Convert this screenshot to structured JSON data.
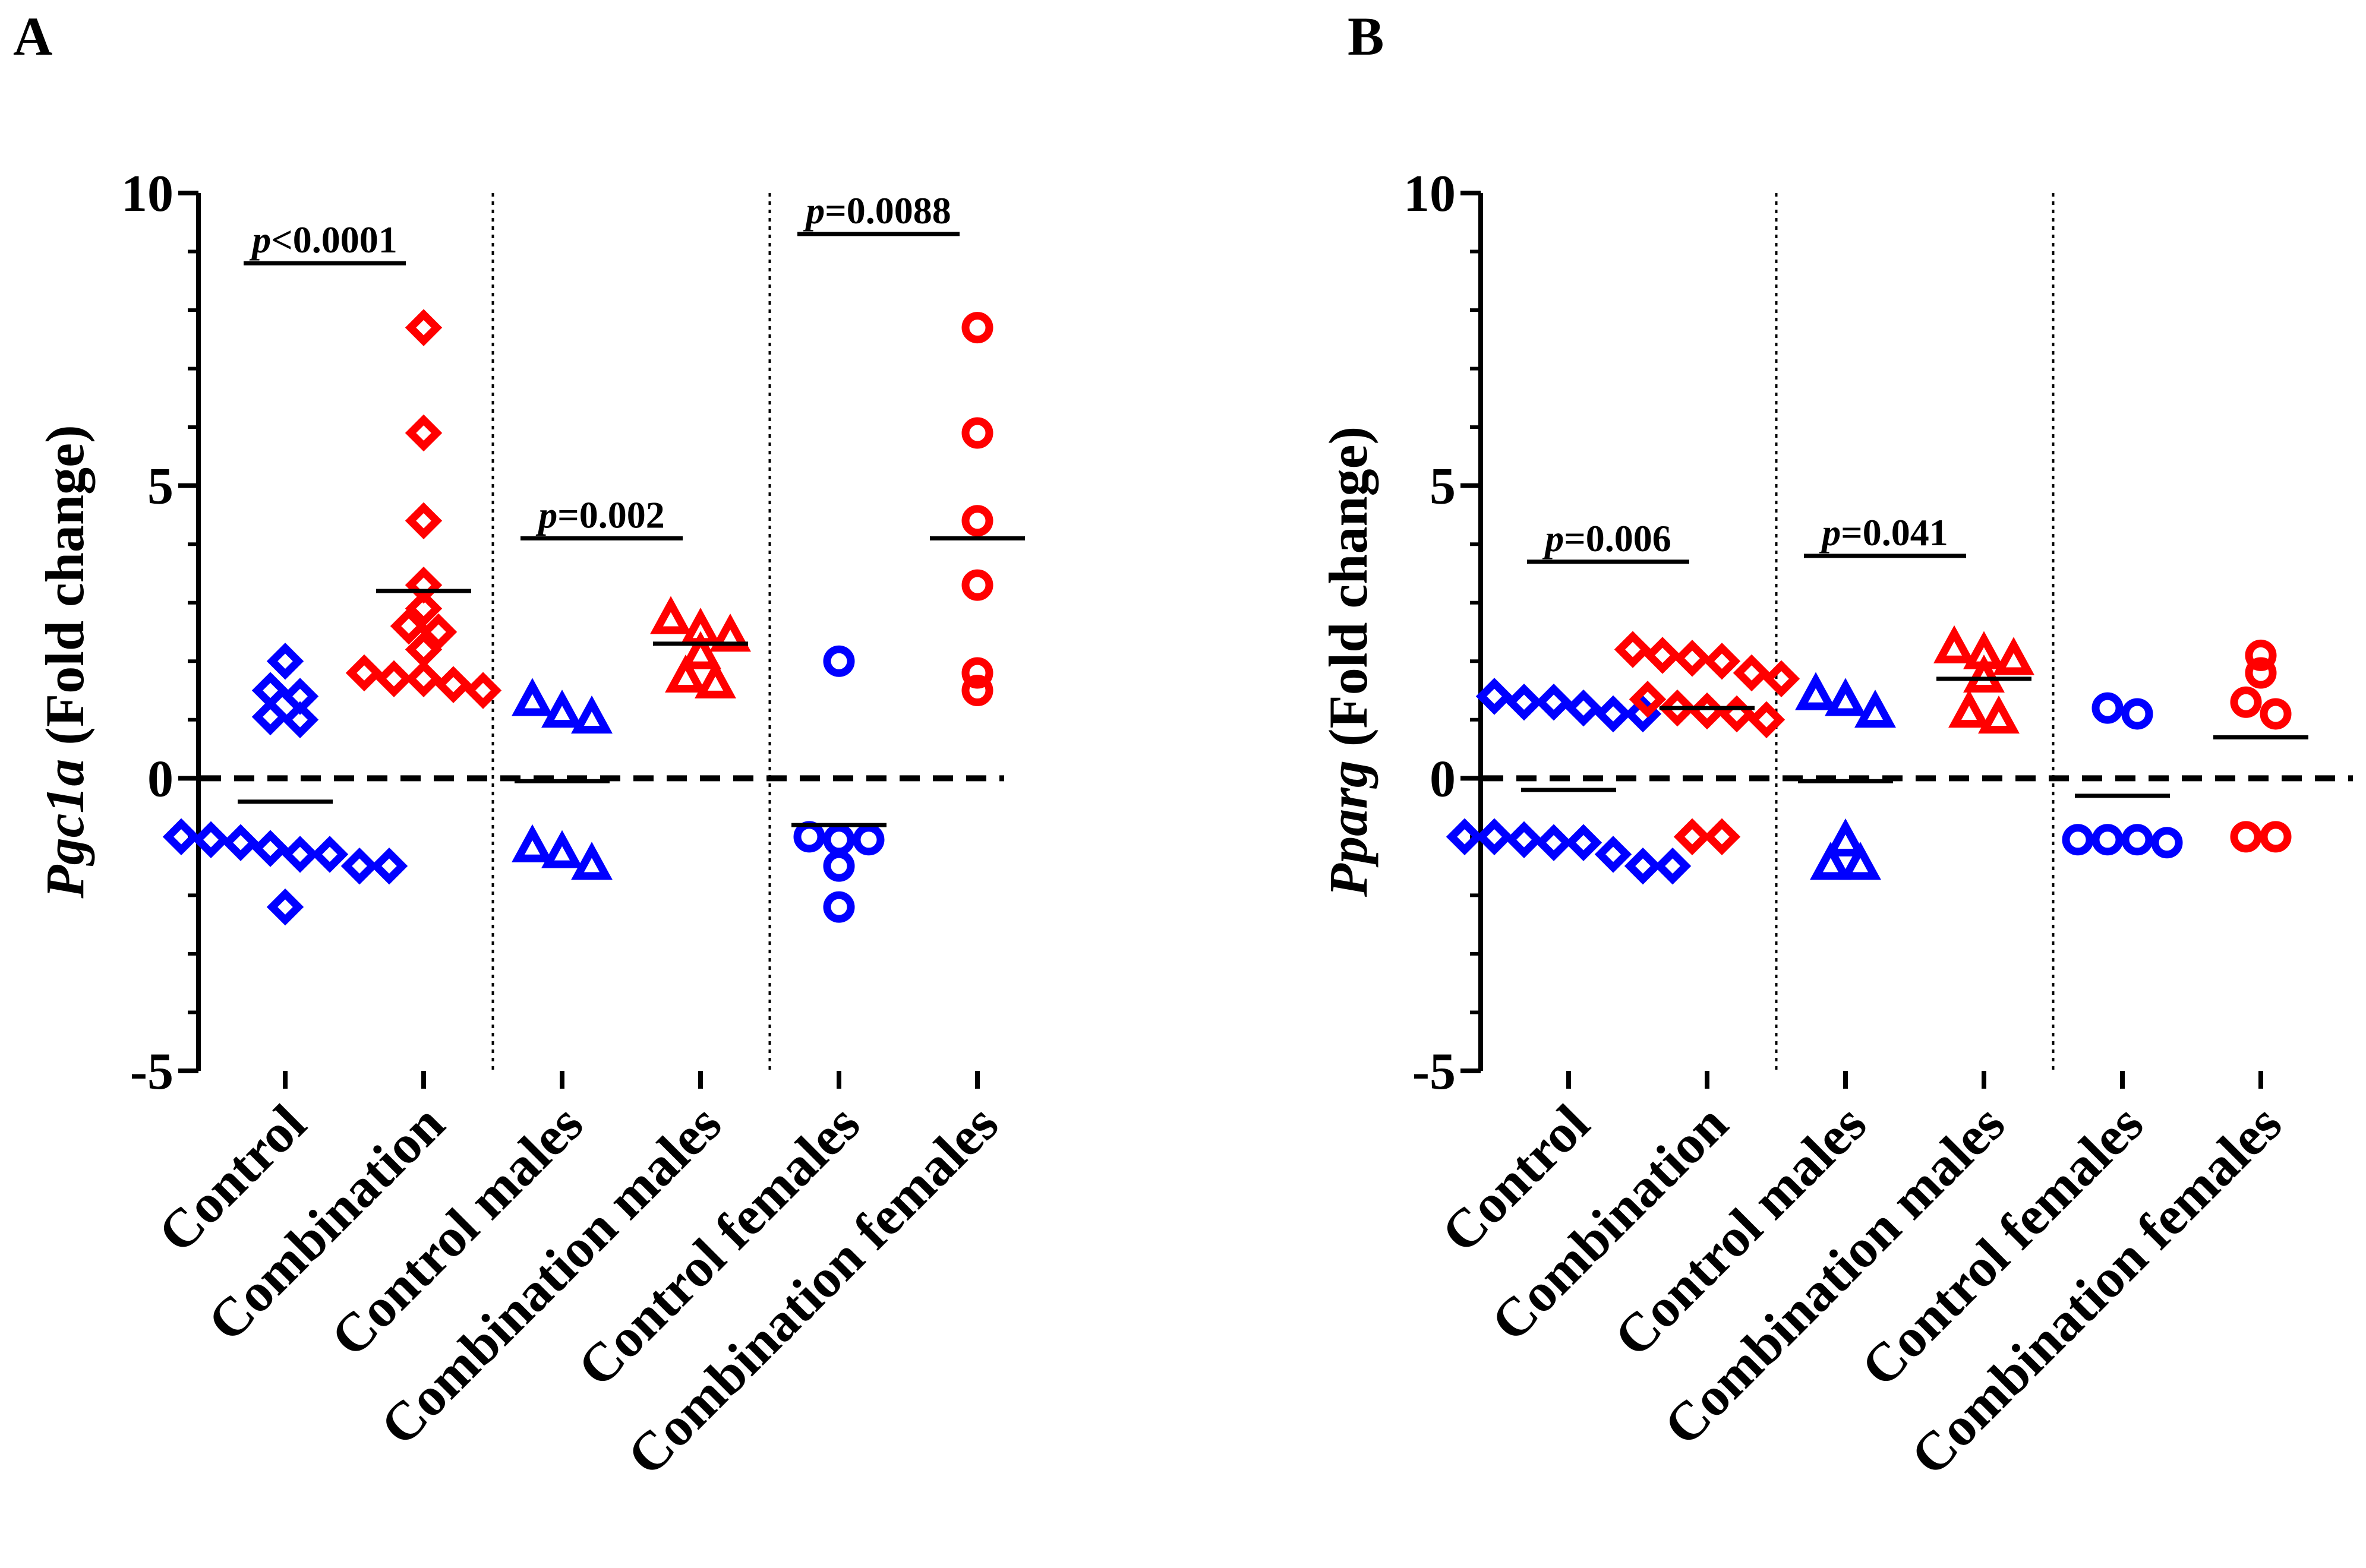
{
  "chart_data": [
    {
      "type": "scatter",
      "panel_label": "A",
      "title": "",
      "ylabel_gene": "Pgc1a",
      "ylabel_suffix": " (Fold change)",
      "ylim": [
        -5,
        10
      ],
      "yticks": [
        -5,
        0,
        5,
        10
      ],
      "reference_line": 0,
      "categories": [
        "Control",
        "Combination",
        "Control males",
        "Combination males",
        "Control females",
        "Combination females"
      ],
      "series": [
        {
          "name": "Control",
          "marker": "diamond",
          "color": "#0000ff",
          "values": [
            2.0,
            1.5,
            1.4,
            1.05,
            1.0,
            -1.0,
            -1.05,
            -1.1,
            -1.2,
            -1.3,
            -1.3,
            -1.5,
            -1.5,
            -2.2
          ],
          "mean": -0.4
        },
        {
          "name": "Combination",
          "marker": "diamond",
          "color": "#ff0000",
          "values": [
            7.7,
            5.9,
            4.4,
            3.3,
            2.9,
            2.6,
            2.5,
            2.2,
            1.8,
            1.7,
            1.7,
            1.6,
            1.5
          ],
          "mean": 3.2
        },
        {
          "name": "Control males",
          "marker": "triangle",
          "color": "#0000ff",
          "values": [
            1.3,
            1.1,
            1.0,
            -1.2,
            -1.3,
            -1.5
          ],
          "mean": -0.05
        },
        {
          "name": "Combination males",
          "marker": "triangle",
          "color": "#ff0000",
          "values": [
            2.7,
            2.5,
            2.4,
            2.1,
            1.7,
            1.6
          ],
          "mean": 2.3
        },
        {
          "name": "Control females",
          "marker": "circle",
          "color": "#0000ff",
          "values": [
            2.0,
            -1.0,
            -1.05,
            -1.05,
            -1.5,
            -2.2
          ],
          "mean": -0.8
        },
        {
          "name": "Combination females",
          "marker": "circle",
          "color": "#ff0000",
          "values": [
            7.7,
            5.9,
            4.4,
            3.3,
            1.8,
            1.5
          ],
          "mean": 4.1
        }
      ],
      "annotations": [
        {
          "label_prefix": "p",
          "label_value": "<0.0001",
          "from": 0,
          "to": 1,
          "y": 8.8
        },
        {
          "label_prefix": "p",
          "label_value": "=0.002",
          "from": 2,
          "to": 3,
          "y": 4.1
        },
        {
          "label_prefix": "p",
          "label_value": "=0.0088",
          "from": 4,
          "to": 5,
          "y": 9.3
        }
      ],
      "separators_after": [
        1,
        3
      ]
    },
    {
      "type": "scatter",
      "panel_label": "B",
      "title": "",
      "ylabel_gene": "Pparg",
      "ylabel_suffix": " (Fold change)",
      "ylim": [
        -5,
        10
      ],
      "yticks": [
        -5,
        0,
        5,
        10
      ],
      "reference_line": 0,
      "categories": [
        "Control",
        "Combination",
        "Control males",
        "Combination males",
        "Control females",
        "Combination females"
      ],
      "series": [
        {
          "name": "Control",
          "marker": "diamond",
          "color": "#0000ff",
          "values": [
            1.4,
            1.3,
            1.3,
            1.2,
            1.1,
            1.1,
            -1.0,
            -1.0,
            -1.05,
            -1.1,
            -1.1,
            -1.3,
            -1.5,
            -1.5
          ],
          "mean": -0.2
        },
        {
          "name": "Combination",
          "marker": "diamond",
          "color": "#ff0000",
          "values": [
            2.2,
            2.1,
            2.05,
            2.0,
            1.8,
            1.7,
            1.35,
            1.2,
            1.15,
            1.1,
            1.0,
            -1.0,
            -1.0
          ],
          "mean": 1.2
        },
        {
          "name": "Control males",
          "marker": "triangle",
          "color": "#0000ff",
          "values": [
            1.4,
            1.3,
            1.1,
            -1.1,
            -1.5,
            -1.5
          ],
          "mean": -0.05
        },
        {
          "name": "Combination males",
          "marker": "triangle",
          "color": "#ff0000",
          "values": [
            2.2,
            2.1,
            2.0,
            1.7,
            1.1,
            1.0
          ],
          "mean": 1.7
        },
        {
          "name": "Control females",
          "marker": "circle",
          "color": "#0000ff",
          "values": [
            1.2,
            1.1,
            -1.05,
            -1.05,
            -1.05,
            -1.1
          ],
          "mean": -0.3
        },
        {
          "name": "Combination females",
          "marker": "circle",
          "color": "#ff0000",
          "values": [
            2.1,
            1.8,
            1.3,
            1.1,
            -1.0,
            -1.0
          ],
          "mean": 0.7
        }
      ],
      "annotations": [
        {
          "label_prefix": "p",
          "label_value": "=0.006",
          "from": 0,
          "to": 1,
          "y": 3.7
        },
        {
          "label_prefix": "p",
          "label_value": "=0.041",
          "from": 2,
          "to": 3,
          "y": 3.8
        }
      ],
      "separators_after": [
        1,
        3
      ]
    }
  ]
}
